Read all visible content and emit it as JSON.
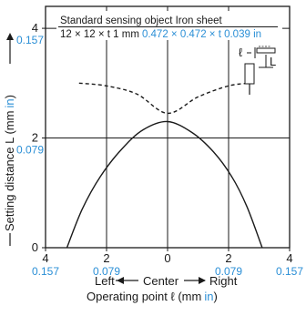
{
  "chart_data": {
    "type": "line",
    "legend": {
      "line1": "Standard sensing object Iron sheet",
      "line2_mm": "12 × 12 × t 1 mm",
      "line2_in": "0.472 × 0.472 × t 0.039 in",
      "diagram_l": "ℓ",
      "diagram_L": "L"
    },
    "y_axis": {
      "label_mm": "Setting distance L (mm",
      "label_in": "in",
      "label_close": ")",
      "ylim": [
        0,
        4.4
      ],
      "ticks": [
        {
          "value": 0,
          "mm": "0",
          "in": ""
        },
        {
          "value": 2,
          "mm": "2",
          "in": "0.079"
        },
        {
          "value": 4,
          "mm": "4",
          "in": "0.157"
        }
      ]
    },
    "x_axis": {
      "xlim": [
        -4,
        4
      ],
      "ticks": [
        {
          "value": -4,
          "mm": "4",
          "in": "0.157"
        },
        {
          "value": -2,
          "mm": "2",
          "in": "0.079"
        },
        {
          "value": 0,
          "mm": "0",
          "in": ""
        },
        {
          "value": 2,
          "mm": "2",
          "in": "0.079"
        },
        {
          "value": 4,
          "mm": "4",
          "in": "0.157"
        }
      ],
      "direction_left": "Left",
      "direction_center": "Center",
      "direction_right": "Right",
      "label_mm": "Operating point ℓ (mm",
      "label_in": "in",
      "label_close": ")"
    },
    "series": [
      {
        "style": "solid",
        "points": [
          [
            -3.3,
            0
          ],
          [
            -2.8,
            0.7
          ],
          [
            -2.2,
            1.3
          ],
          [
            -1.5,
            1.8
          ],
          [
            -0.8,
            2.15
          ],
          [
            0,
            2.3
          ],
          [
            0.8,
            2.1
          ],
          [
            1.5,
            1.75
          ],
          [
            2.1,
            1.3
          ],
          [
            2.6,
            0.75
          ],
          [
            3.1,
            0
          ]
        ]
      },
      {
        "style": "dashed",
        "points": [
          [
            -2.9,
            3.0
          ],
          [
            -2.0,
            2.95
          ],
          [
            -1.0,
            2.8
          ],
          [
            0,
            2.45
          ],
          [
            1.0,
            2.75
          ],
          [
            2.0,
            2.95
          ],
          [
            2.7,
            3.0
          ]
        ]
      }
    ],
    "grid": true
  }
}
